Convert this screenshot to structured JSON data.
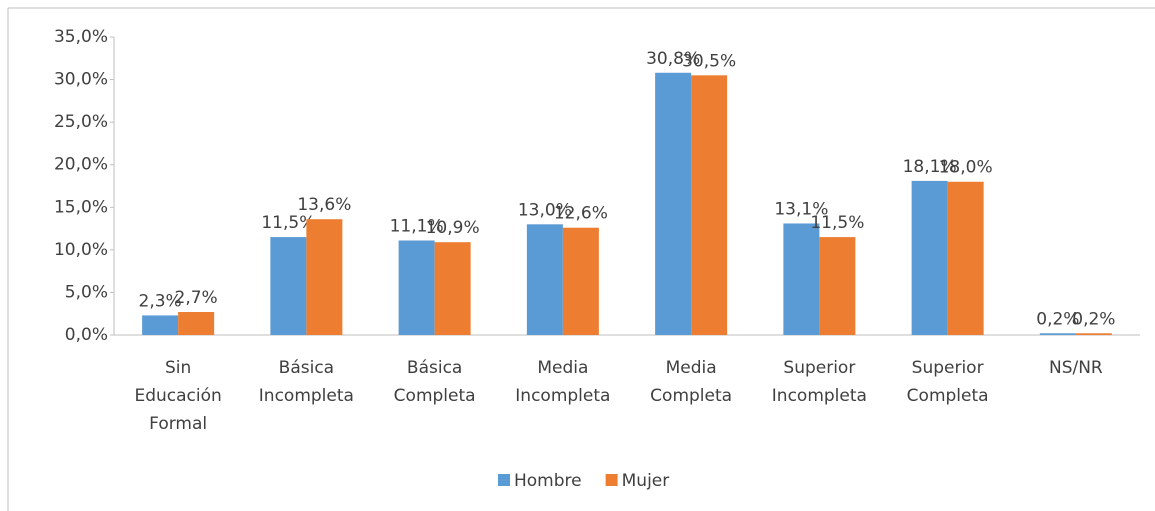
{
  "chart_data": {
    "type": "bar",
    "categories": [
      "Sin Educación Formal",
      "Básica Incompleta",
      "Básica Completa",
      "Media Incompleta",
      "Media Completa",
      "Superior Incompleta",
      "Superior Completa",
      "NS/NR"
    ],
    "series": [
      {
        "name": "Hombre",
        "color": "#5b9bd5",
        "values": [
          2.3,
          11.5,
          11.1,
          13.0,
          30.8,
          13.1,
          18.1,
          0.2
        ],
        "value_labels": [
          "2,3%",
          "11,5%",
          "11,1%",
          "13,0%",
          "30,8%",
          "13,1%",
          "18,1%",
          "0,2%"
        ]
      },
      {
        "name": "Mujer",
        "color": "#ed7d31",
        "values": [
          2.7,
          13.6,
          10.9,
          12.6,
          30.5,
          11.5,
          18.0,
          0.2
        ],
        "value_labels": [
          "2,7%",
          "13,6%",
          "10,9%",
          "12,6%",
          "30,5%",
          "11,5%",
          "18,0%",
          "0,2%"
        ]
      }
    ],
    "ylim": [
      0,
      35
    ],
    "yticks": [
      {
        "value": 0,
        "label": "0,0%"
      },
      {
        "value": 5,
        "label": "5,0%"
      },
      {
        "value": 10,
        "label": "10,0%"
      },
      {
        "value": 15,
        "label": "15,0%"
      },
      {
        "value": 20,
        "label": "20,0%"
      },
      {
        "value": 25,
        "label": "25,0%"
      },
      {
        "value": 30,
        "label": "30,0%"
      },
      {
        "value": 35,
        "label": "35,0%"
      }
    ],
    "legend": "bottom"
  }
}
